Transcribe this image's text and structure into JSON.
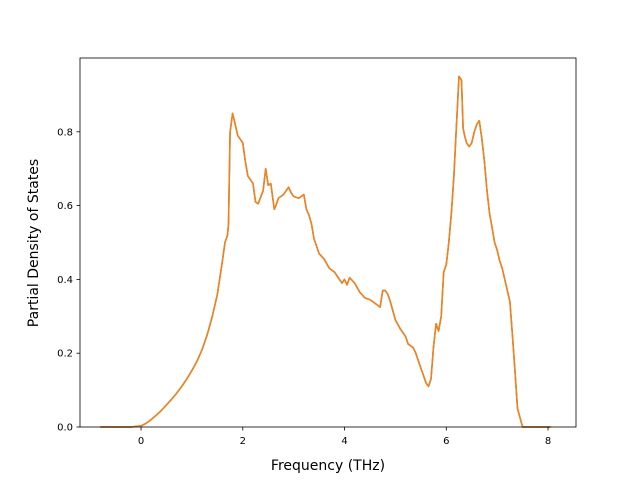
{
  "chart_data": {
    "type": "line",
    "title": "",
    "xlabel": "Frequency (THz)",
    "ylabel": "Partial Density of States",
    "xlim": [
      -1.2,
      8.55
    ],
    "ylim": [
      0.0,
      1.0
    ],
    "xticks": [
      0,
      2,
      4,
      6,
      8
    ],
    "yticks": [
      0.0,
      0.2,
      0.4,
      0.6,
      0.8
    ],
    "grid": false,
    "legend": "none",
    "series": [
      {
        "color": "#1f77b4",
        "x": [
          -0.8,
          -0.6,
          -0.4,
          -0.2,
          0.0,
          0.1,
          0.2,
          0.3,
          0.4,
          0.5,
          0.6,
          0.7,
          0.8,
          0.9,
          1.0,
          1.1,
          1.2,
          1.3,
          1.4,
          1.5,
          1.6,
          1.65,
          1.7,
          1.72,
          1.75,
          1.8,
          1.85,
          1.9,
          2.0,
          2.05,
          2.1,
          2.2,
          2.25,
          2.3,
          2.4,
          2.45,
          2.5,
          2.55,
          2.58,
          2.62,
          2.65,
          2.7,
          2.8,
          2.9,
          2.95,
          3.0,
          3.1,
          3.15,
          3.2,
          3.25,
          3.3,
          3.35,
          3.4,
          3.45,
          3.5,
          3.6,
          3.7,
          3.8,
          3.85,
          3.9,
          3.95,
          4.0,
          4.05,
          4.1,
          4.2,
          4.3,
          4.4,
          4.5,
          4.6,
          4.65,
          4.7,
          4.75,
          4.8,
          4.85,
          4.9,
          5.0,
          5.1,
          5.2,
          5.25,
          5.3,
          5.35,
          5.4,
          5.45,
          5.5,
          5.55,
          5.6,
          5.65,
          5.7,
          5.75,
          5.8,
          5.85,
          5.9,
          5.95,
          6.0,
          6.05,
          6.1,
          6.15,
          6.2,
          6.25,
          6.3,
          6.33,
          6.36,
          6.4,
          6.45,
          6.5,
          6.55,
          6.6,
          6.65,
          6.7,
          6.75,
          6.8,
          6.85,
          6.9,
          6.95,
          7.0,
          7.05,
          7.1,
          7.15,
          7.2,
          7.25,
          7.3,
          7.35,
          7.4,
          7.5,
          7.7,
          7.9,
          8.05
        ],
        "y": [
          0.0,
          0.0,
          0.0,
          0.0,
          0.003,
          0.01,
          0.02,
          0.032,
          0.045,
          0.06,
          0.075,
          0.092,
          0.11,
          0.13,
          0.153,
          0.178,
          0.21,
          0.25,
          0.3,
          0.36,
          0.45,
          0.5,
          0.52,
          0.55,
          0.8,
          0.85,
          0.82,
          0.79,
          0.77,
          0.72,
          0.68,
          0.66,
          0.61,
          0.605,
          0.64,
          0.7,
          0.655,
          0.66,
          0.63,
          0.59,
          0.6,
          0.62,
          0.63,
          0.65,
          0.635,
          0.625,
          0.62,
          0.625,
          0.63,
          0.59,
          0.575,
          0.55,
          0.51,
          0.49,
          0.47,
          0.455,
          0.43,
          0.42,
          0.41,
          0.4,
          0.39,
          0.4,
          0.385,
          0.405,
          0.39,
          0.365,
          0.35,
          0.345,
          0.335,
          0.33,
          0.325,
          0.37,
          0.37,
          0.36,
          0.34,
          0.29,
          0.265,
          0.245,
          0.225,
          0.22,
          0.215,
          0.2,
          0.18,
          0.16,
          0.14,
          0.12,
          0.11,
          0.13,
          0.22,
          0.28,
          0.26,
          0.3,
          0.42,
          0.44,
          0.5,
          0.58,
          0.68,
          0.82,
          0.95,
          0.94,
          0.81,
          0.79,
          0.77,
          0.76,
          0.77,
          0.8,
          0.82,
          0.83,
          0.78,
          0.72,
          0.64,
          0.58,
          0.54,
          0.5,
          0.48,
          0.45,
          0.43,
          0.4,
          0.37,
          0.34,
          0.25,
          0.15,
          0.05,
          0.0,
          0.0,
          0.0,
          0.0
        ]
      },
      {
        "color": "#ff7f0e",
        "x": [
          -0.8,
          -0.6,
          -0.4,
          -0.2,
          0.0,
          0.1,
          0.2,
          0.3,
          0.4,
          0.5,
          0.6,
          0.7,
          0.8,
          0.9,
          1.0,
          1.1,
          1.2,
          1.3,
          1.4,
          1.5,
          1.6,
          1.65,
          1.7,
          1.72,
          1.75,
          1.8,
          1.85,
          1.9,
          2.0,
          2.05,
          2.1,
          2.2,
          2.25,
          2.3,
          2.4,
          2.45,
          2.5,
          2.55,
          2.58,
          2.62,
          2.65,
          2.7,
          2.8,
          2.9,
          2.95,
          3.0,
          3.1,
          3.15,
          3.2,
          3.25,
          3.3,
          3.35,
          3.4,
          3.45,
          3.5,
          3.6,
          3.7,
          3.8,
          3.85,
          3.9,
          3.95,
          4.0,
          4.05,
          4.1,
          4.2,
          4.3,
          4.4,
          4.5,
          4.6,
          4.65,
          4.7,
          4.75,
          4.8,
          4.85,
          4.9,
          5.0,
          5.1,
          5.2,
          5.25,
          5.3,
          5.35,
          5.4,
          5.45,
          5.5,
          5.55,
          5.6,
          5.65,
          5.7,
          5.75,
          5.8,
          5.85,
          5.9,
          5.95,
          6.0,
          6.05,
          6.1,
          6.15,
          6.2,
          6.25,
          6.3,
          6.33,
          6.36,
          6.4,
          6.45,
          6.5,
          6.55,
          6.6,
          6.65,
          6.7,
          6.75,
          6.8,
          6.85,
          6.9,
          6.95,
          7.0,
          7.05,
          7.1,
          7.15,
          7.2,
          7.25,
          7.3,
          7.35,
          7.4,
          7.5,
          7.7,
          7.9,
          8.05
        ],
        "y": [
          0.0,
          0.0,
          0.0,
          0.0,
          0.003,
          0.01,
          0.02,
          0.032,
          0.045,
          0.06,
          0.075,
          0.092,
          0.11,
          0.13,
          0.153,
          0.178,
          0.21,
          0.25,
          0.3,
          0.36,
          0.45,
          0.5,
          0.52,
          0.55,
          0.8,
          0.85,
          0.82,
          0.79,
          0.77,
          0.72,
          0.68,
          0.66,
          0.61,
          0.605,
          0.64,
          0.7,
          0.655,
          0.66,
          0.63,
          0.59,
          0.6,
          0.62,
          0.63,
          0.65,
          0.635,
          0.625,
          0.62,
          0.625,
          0.63,
          0.59,
          0.575,
          0.55,
          0.51,
          0.49,
          0.47,
          0.455,
          0.43,
          0.42,
          0.41,
          0.4,
          0.39,
          0.4,
          0.385,
          0.405,
          0.39,
          0.365,
          0.35,
          0.345,
          0.335,
          0.33,
          0.325,
          0.37,
          0.37,
          0.36,
          0.34,
          0.29,
          0.265,
          0.245,
          0.225,
          0.22,
          0.215,
          0.2,
          0.18,
          0.16,
          0.14,
          0.12,
          0.11,
          0.13,
          0.22,
          0.28,
          0.26,
          0.3,
          0.42,
          0.44,
          0.5,
          0.58,
          0.68,
          0.82,
          0.95,
          0.94,
          0.81,
          0.79,
          0.77,
          0.76,
          0.77,
          0.8,
          0.82,
          0.83,
          0.78,
          0.72,
          0.64,
          0.58,
          0.54,
          0.5,
          0.48,
          0.45,
          0.43,
          0.4,
          0.37,
          0.34,
          0.25,
          0.15,
          0.05,
          0.0,
          0.0,
          0.0,
          0.0
        ]
      }
    ]
  }
}
